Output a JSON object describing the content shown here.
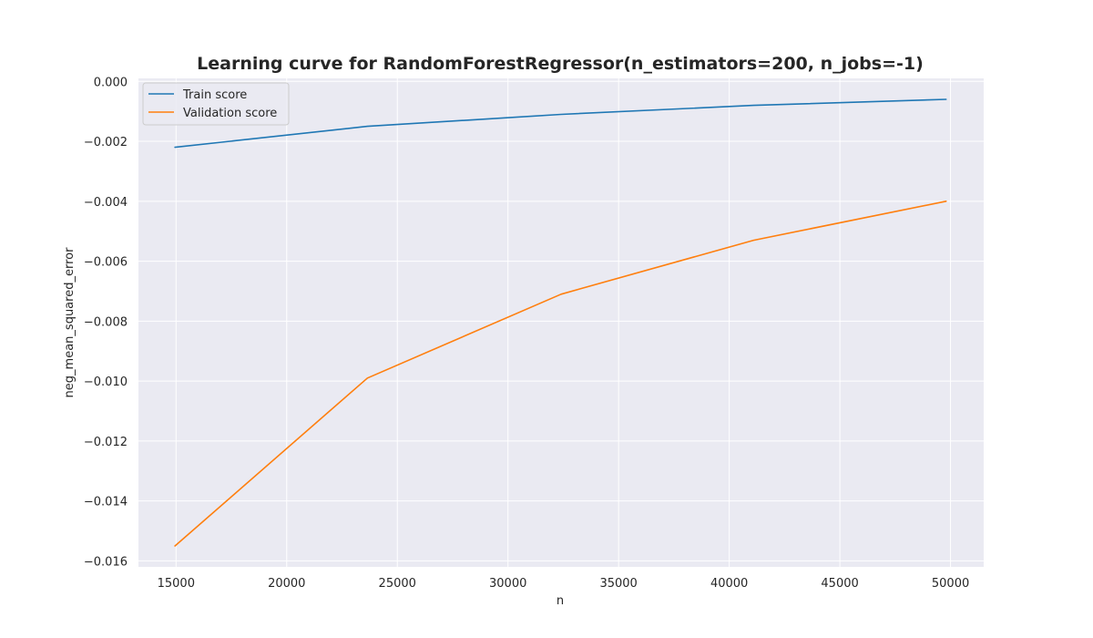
{
  "chart_data": {
    "type": "line",
    "title": "Learning curve for RandomForestRegressor(n_estimators=200, n_jobs=-1)",
    "xlabel": "n",
    "ylabel": "neg_mean_squared_error",
    "xlim": [
      13300,
      51500
    ],
    "ylim": [
      -0.0162,
      0.0001
    ],
    "xticks": [
      15000,
      20000,
      25000,
      30000,
      35000,
      40000,
      45000,
      50000
    ],
    "xtick_labels": [
      "15000",
      "20000",
      "25000",
      "30000",
      "35000",
      "40000",
      "45000",
      "50000"
    ],
    "yticks": [
      0.0,
      -0.002,
      -0.004,
      -0.006,
      -0.008,
      -0.01,
      -0.012,
      -0.014,
      -0.016
    ],
    "ytick_labels": [
      "0.000",
      "−0.002",
      "−0.004",
      "−0.006",
      "−0.008",
      "−0.010",
      "−0.012",
      "−0.014",
      "−0.016"
    ],
    "grid": true,
    "legend_position": "top-left",
    "x": [
      14950,
      23650,
      32400,
      41100,
      49800
    ],
    "series": [
      {
        "name": "Train score",
        "color": "#1f77b4",
        "values": [
          -0.0022,
          -0.0015,
          -0.0011,
          -0.0008,
          -0.0006
        ]
      },
      {
        "name": "Validation score",
        "color": "#ff7f0e",
        "values": [
          -0.0155,
          -0.0099,
          -0.0071,
          -0.0053,
          -0.004
        ]
      }
    ],
    "background_color": "#eaeaf2",
    "grid_color": "#ffffff"
  }
}
